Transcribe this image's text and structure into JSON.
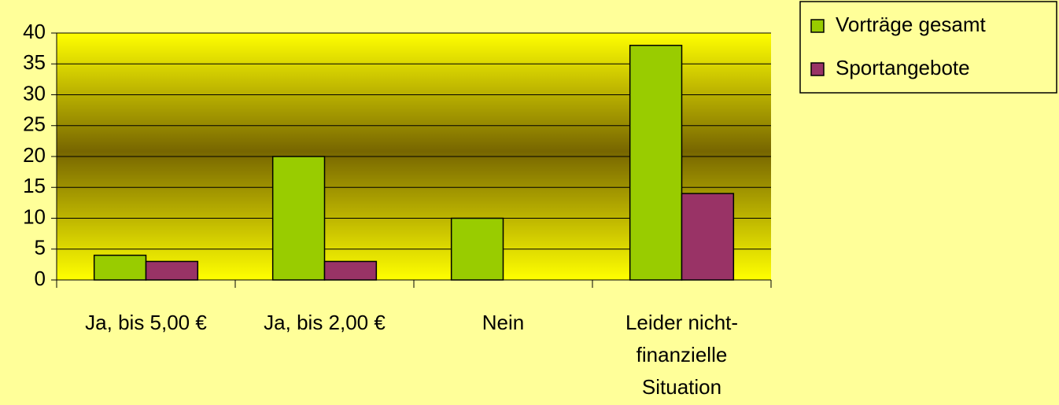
{
  "chart_data": {
    "type": "bar",
    "categories": [
      "Ja, bis 5,00 €",
      "Ja, bis 2,00 €",
      "Nein",
      "Leider nicht-finanzielle Situation"
    ],
    "series": [
      {
        "name": "Vorträge gesamt",
        "color": "#99cc00",
        "values": [
          4,
          20,
          10,
          38
        ]
      },
      {
        "name": "Sportangebote",
        "color": "#993366",
        "values": [
          3,
          3,
          0,
          14
        ]
      }
    ],
    "ylim": [
      0,
      40
    ],
    "yticks": [
      0,
      5,
      10,
      15,
      20,
      25,
      30,
      35,
      40
    ],
    "grid": true,
    "legend": "top-right"
  }
}
